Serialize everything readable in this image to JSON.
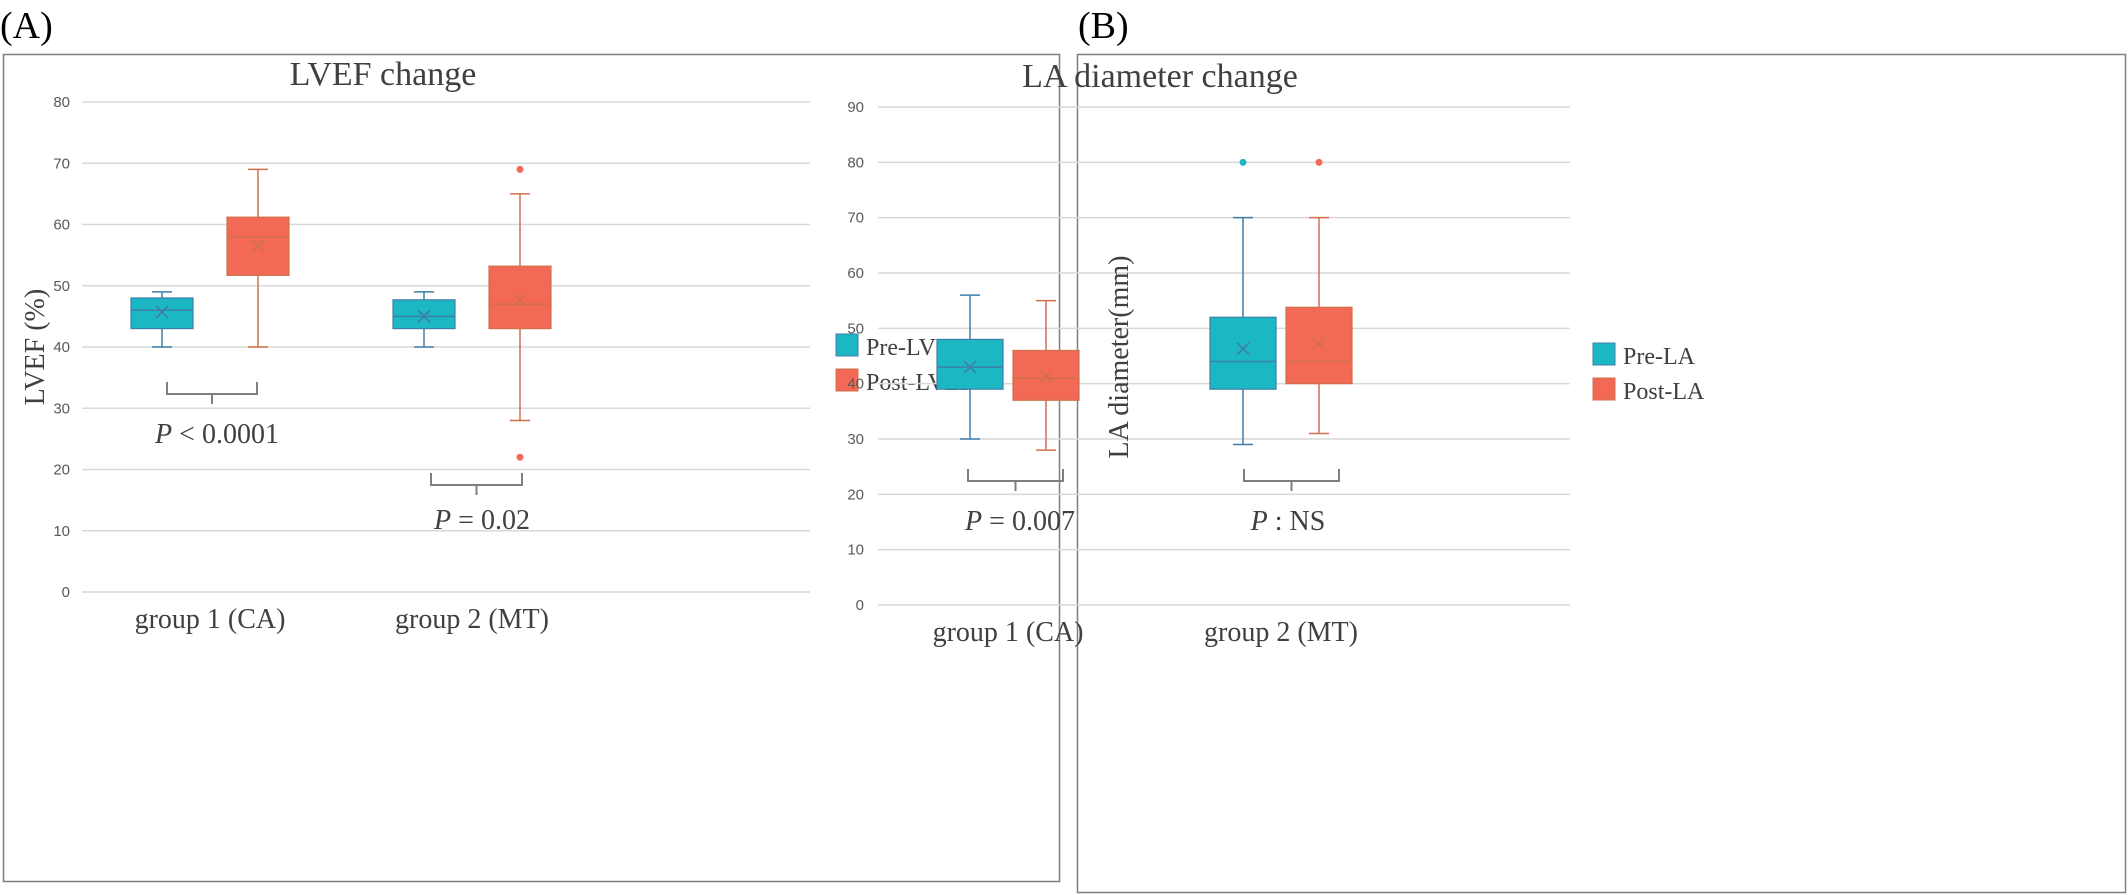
{
  "panels": [
    {
      "panel_label": "(A)",
      "p_values": [
        {
          "italic": "P",
          "text": " < 0.0001"
        },
        {
          "italic": "P",
          "text": " = 0.02"
        }
      ]
    },
    {
      "panel_label": "(B)",
      "p_values": [
        {
          "italic": "P",
          "text": " = 0.007"
        },
        {
          "italic": "P",
          "text": " : NS"
        }
      ]
    }
  ],
  "chart_data": [
    {
      "type": "box",
      "title": "LVEF change",
      "ylabel": "LVEF (%)",
      "xlabel": "",
      "ylim": [
        0,
        80
      ],
      "yticks": [
        0,
        10,
        20,
        30,
        40,
        50,
        60,
        70,
        80
      ],
      "grid": true,
      "legend_position": "right",
      "categories": [
        "group 1 (CA)",
        "group 2 (MT)"
      ],
      "series": [
        {
          "name": "Pre-LVEF",
          "color": "#1bb8c4",
          "boxes": [
            {
              "min": 40,
              "q1": 43,
              "median": 46,
              "q3": 48,
              "max": 49,
              "mean": 45.7,
              "outliers": []
            },
            {
              "min": 40,
              "q1": 43,
              "median": 45,
              "q3": 47.7,
              "max": 49,
              "mean": 45,
              "outliers": []
            }
          ]
        },
        {
          "name": "Post-LVEF",
          "color": "#f26a55",
          "boxes": [
            {
              "min": 40,
              "q1": 51.7,
              "median": 58,
              "q3": 61.2,
              "max": 69,
              "mean": 56.5,
              "outliers": []
            },
            {
              "min": 28,
              "q1": 43,
              "median": 47,
              "q3": 53.2,
              "max": 65,
              "mean": 47.7,
              "outliers": [
                69,
                22
              ]
            }
          ]
        }
      ]
    },
    {
      "type": "box",
      "title": "LA diameter change",
      "ylabel": "LA diameter(mm)",
      "xlabel": "",
      "ylim": [
        0,
        90
      ],
      "yticks": [
        0,
        10,
        20,
        30,
        40,
        50,
        60,
        70,
        80,
        90
      ],
      "grid": true,
      "legend_position": "right",
      "categories": [
        "group 1 (CA)",
        "group 2 (MT)"
      ],
      "series": [
        {
          "name": "Pre-LA",
          "color": "#1bb8c4",
          "boxes": [
            {
              "min": 30,
              "q1": 39,
              "median": 43,
              "q3": 48,
              "max": 56,
              "mean": 43,
              "outliers": []
            },
            {
              "min": 29,
              "q1": 39,
              "median": 44,
              "q3": 52,
              "max": 70,
              "mean": 46.3,
              "outliers": [
                80
              ]
            }
          ]
        },
        {
          "name": "Post-LA",
          "color": "#f26a55",
          "boxes": [
            {
              "min": 28,
              "q1": 37,
              "median": 41,
              "q3": 46,
              "max": 55,
              "mean": 41.3,
              "outliers": []
            },
            {
              "min": 31,
              "q1": 40,
              "median": 44,
              "q3": 53.8,
              "max": 70,
              "mean": 47.2,
              "outliers": [
                80
              ]
            }
          ]
        }
      ]
    }
  ]
}
